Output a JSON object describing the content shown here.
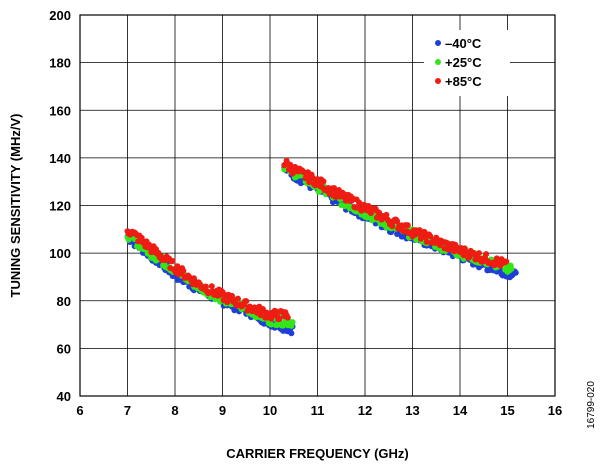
{
  "chart_data": {
    "type": "scatter",
    "xlabel": "CARRIER FREQUENCY (GHz)",
    "ylabel": "TUNING SENSITIVITY (MHz/V)",
    "xlim": [
      6,
      16
    ],
    "ylim": [
      40,
      200
    ],
    "xticks": [
      6,
      7,
      8,
      9,
      10,
      11,
      12,
      13,
      14,
      15,
      16
    ],
    "yticks": [
      40,
      60,
      80,
      100,
      120,
      140,
      160,
      180,
      200
    ],
    "grid": true,
    "legend_position": "top-right",
    "series": [
      {
        "name": "–40°C",
        "color": "#1f3fd6",
        "bands": [
          {
            "x": [
              7.0,
              7.5,
              8.0,
              8.5,
              9.0,
              9.5,
              10.0,
              10.5
            ],
            "y": [
              107,
              99,
              91,
              85,
              80,
              76,
              71,
              68
            ]
          },
          {
            "x": [
              10.3,
              10.5,
              11.0,
              11.5,
              12.0,
              12.5,
              13.0,
              13.5,
              14.0,
              14.5,
              15.0,
              15.2
            ],
            "y": [
              136,
              133,
              127,
              121,
              116,
              111,
              107,
              103,
              99,
              95,
              92,
              90
            ]
          }
        ]
      },
      {
        "name": "+25°C",
        "color": "#33e61a",
        "bands": [
          {
            "x": [
              7.0,
              7.5,
              8.0,
              8.5,
              9.0,
              9.5,
              10.0,
              10.5
            ],
            "y": [
              108,
              100,
              93,
              86,
              81,
              77,
              72,
              71
            ]
          },
          {
            "x": [
              10.3,
              10.5,
              11.0,
              11.5,
              12.0,
              12.5,
              13.0,
              13.5,
              14.0,
              14.5,
              15.0,
              15.1
            ],
            "y": [
              137,
              134,
              128,
              122,
              117,
              112,
              108,
              104,
              100,
              97,
              94,
              93
            ]
          }
        ]
      },
      {
        "name": "+85°C",
        "color": "#ee1c12",
        "bands": [
          {
            "x": [
              7.0,
              7.5,
              8.0,
              8.5,
              9.0,
              9.5,
              10.0,
              10.4
            ],
            "y": [
              110,
              102,
              94,
              87,
              82,
              78,
              74,
              74
            ]
          },
          {
            "x": [
              10.3,
              10.5,
              11.0,
              11.5,
              12.0,
              12.5,
              13.0,
              13.5,
              14.0,
              14.5,
              15.0
            ],
            "y": [
              138,
              135,
              130,
              124,
              119,
              114,
              109,
              105,
              101,
              98,
              95
            ]
          }
        ]
      }
    ]
  },
  "figure_id": "16799-020"
}
